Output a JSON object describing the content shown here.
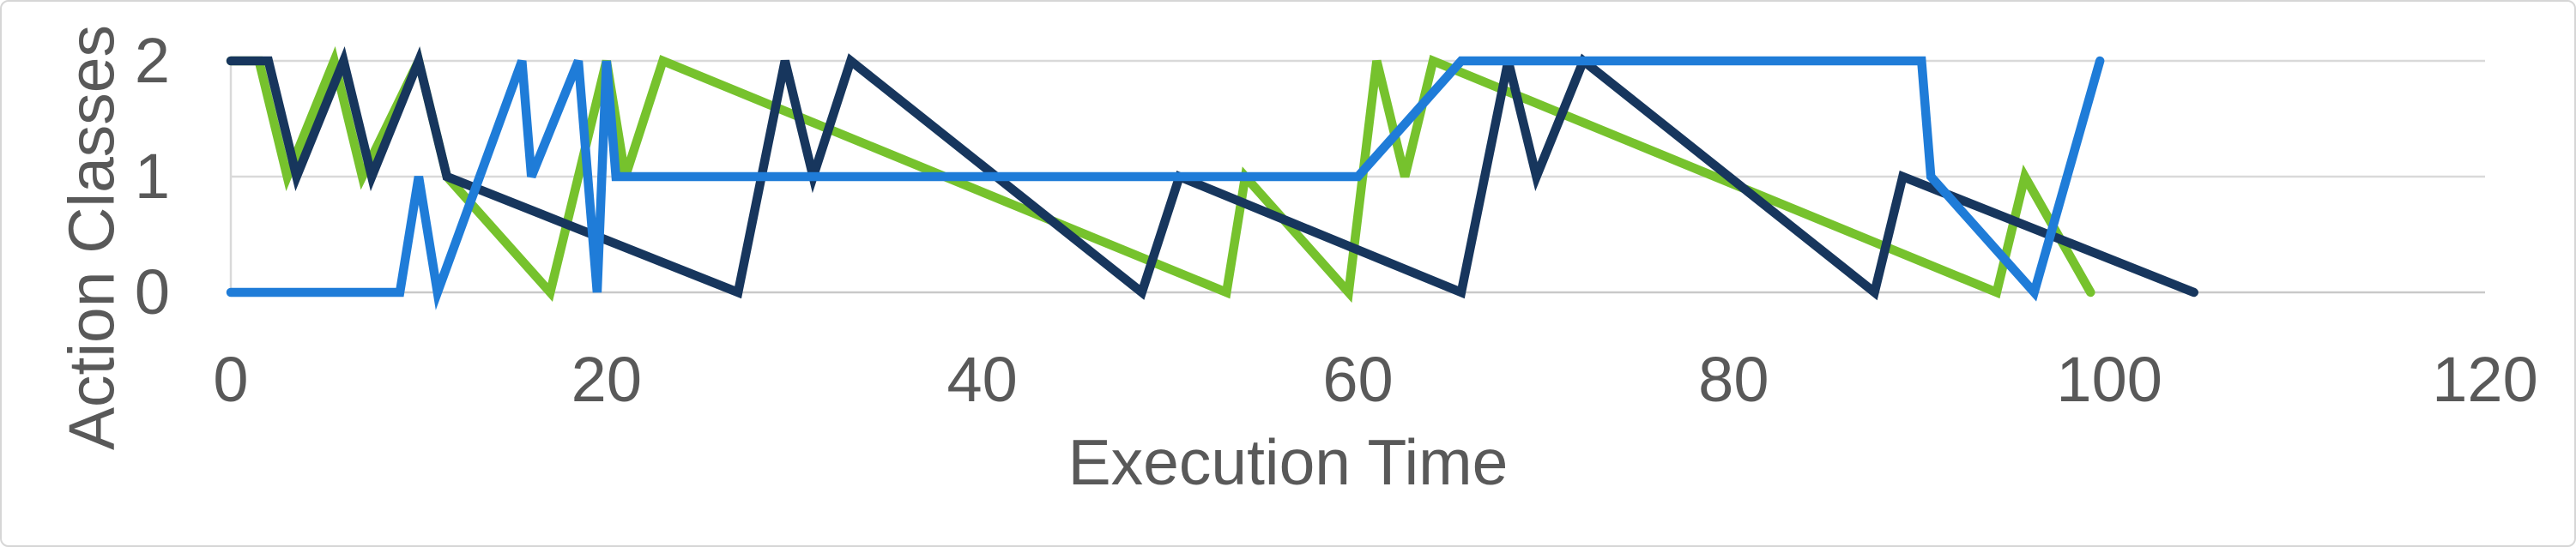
{
  "chart_data": {
    "type": "line",
    "title": "",
    "xlabel": "Execution Time",
    "ylabel": "Action Classes",
    "xlim": [
      0,
      120
    ],
    "ylim": [
      0,
      2
    ],
    "x_ticks": [
      0,
      20,
      40,
      60,
      80,
      100,
      120
    ],
    "y_ticks": [
      0,
      1,
      2
    ],
    "grid": "horizontal-only",
    "legend": "none",
    "series": [
      {
        "name": "green-series",
        "color": "#76C22D",
        "points": [
          [
            0,
            2
          ],
          [
            1.5,
            2
          ],
          [
            3,
            1
          ],
          [
            5.5,
            2
          ],
          [
            7,
            1
          ],
          [
            10,
            2
          ],
          [
            11.5,
            1
          ],
          [
            17,
            0
          ],
          [
            20,
            2
          ],
          [
            21,
            1
          ],
          [
            23,
            2
          ],
          [
            53,
            0
          ],
          [
            54,
            1
          ],
          [
            59.5,
            0
          ],
          [
            61,
            2
          ],
          [
            62.5,
            1
          ],
          [
            64,
            2
          ],
          [
            94,
            0
          ],
          [
            95.5,
            1
          ],
          [
            99,
            0
          ]
        ]
      },
      {
        "name": "navy-series",
        "color": "#17365D",
        "points": [
          [
            0,
            2
          ],
          [
            2,
            2
          ],
          [
            3.5,
            1
          ],
          [
            6,
            2
          ],
          [
            7.5,
            1
          ],
          [
            10,
            2
          ],
          [
            11.5,
            1
          ],
          [
            27,
            0
          ],
          [
            29.5,
            2
          ],
          [
            31,
            1
          ],
          [
            33,
            2
          ],
          [
            48.5,
            0
          ],
          [
            50.5,
            1
          ],
          [
            65.5,
            0
          ],
          [
            68,
            2
          ],
          [
            69.5,
            1
          ],
          [
            72,
            2
          ],
          [
            87.5,
            0
          ],
          [
            89,
            1
          ],
          [
            104.5,
            0
          ]
        ]
      },
      {
        "name": "blue-series",
        "color": "#1F7CD8",
        "points": [
          [
            0,
            0
          ],
          [
            9,
            0
          ],
          [
            10,
            1
          ],
          [
            11,
            0
          ],
          [
            15.5,
            2
          ],
          [
            16,
            1
          ],
          [
            18.5,
            2
          ],
          [
            19.5,
            0
          ],
          [
            20,
            2
          ],
          [
            20.5,
            1
          ],
          [
            60,
            1
          ],
          [
            65.5,
            2
          ],
          [
            90,
            2
          ],
          [
            90.5,
            1
          ],
          [
            96,
            0
          ],
          [
            99.5,
            2
          ]
        ]
      }
    ]
  },
  "colors": {
    "background": "#ffffff",
    "frame_border": "#d6d6d6",
    "gridline": "#d9d9d9",
    "bottom_gridline": "#c9c9c9",
    "axis_line": "#d9d9d9",
    "tick_label": "#595959",
    "axis_title": "#595959"
  }
}
